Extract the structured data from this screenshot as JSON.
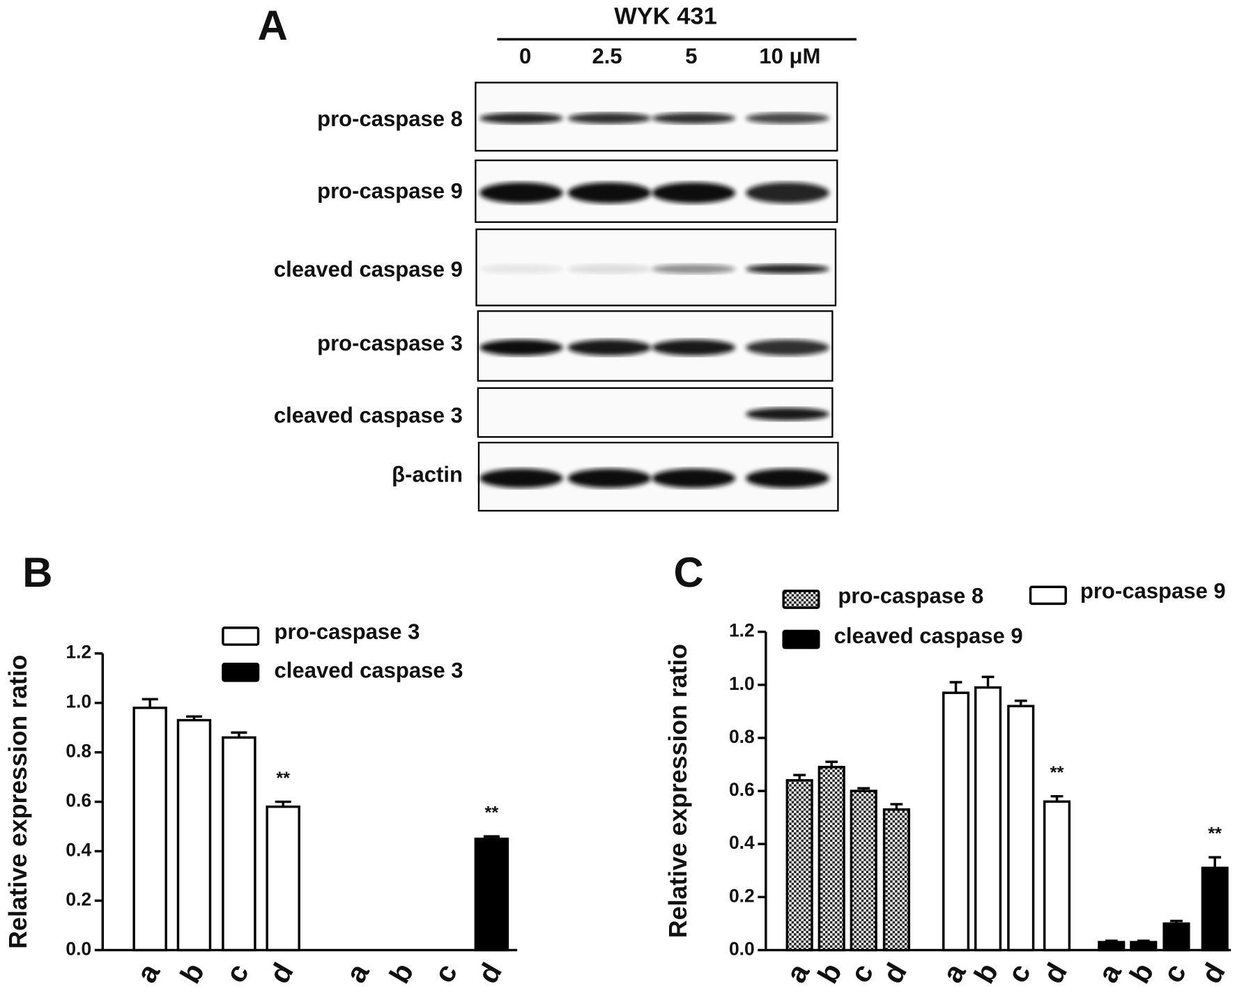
{
  "blot": {
    "panel_label": "A",
    "title": "WYK 431",
    "lanes": [
      "0",
      "2.5",
      "5",
      "10 μM"
    ],
    "rows": [
      "pro-caspase 8",
      "pro-caspase 9",
      "cleaved caspase 9",
      "pro-caspase 3",
      "cleaved caspase 3",
      "β-actin"
    ]
  },
  "chart_data": [
    {
      "type": "bar",
      "panel_label": "B",
      "y_label": "Relative expression ratio",
      "categories": [
        "a",
        "b",
        "c",
        "d",
        "a",
        "b",
        "c",
        "d"
      ],
      "ylim": [
        0,
        1.2
      ],
      "yticks": [
        {
          "value": 0,
          "label": "0.0"
        },
        {
          "value": 0.2,
          "label": "0.2"
        },
        {
          "value": 0.4,
          "label": "0.4"
        },
        {
          "value": 0.6,
          "label": "0.6"
        },
        {
          "value": 0.8,
          "label": "0.8"
        },
        {
          "value": 1,
          "label": "1.0"
        },
        {
          "value": 1.2,
          "label": "1.2"
        }
      ],
      "series": [
        {
          "name": "pro-caspase 3",
          "color": "#ffffff",
          "values": [
            0.98,
            0.93,
            0.86,
            0.58,
            null,
            null,
            null,
            null
          ],
          "errors": [
            0.035,
            0.015,
            0.02,
            0.02,
            null,
            null,
            null,
            null
          ],
          "annotations": [
            null,
            null,
            null,
            "**",
            null,
            null,
            null,
            null
          ]
        },
        {
          "name": "cleaved caspase 3",
          "color": "#000000",
          "values": [
            null,
            null,
            null,
            null,
            0,
            0,
            0,
            0.45
          ],
          "errors": [
            null,
            null,
            null,
            null,
            0,
            0,
            0,
            0.01
          ],
          "annotations": [
            null,
            null,
            null,
            null,
            null,
            null,
            null,
            "**"
          ]
        }
      ]
    },
    {
      "type": "bar",
      "panel_label": "C",
      "y_label": "Relative expression ratio",
      "categories": [
        "a",
        "b",
        "c",
        "d",
        "a",
        "b",
        "c",
        "d",
        "a",
        "b",
        "c",
        "d"
      ],
      "ylim": [
        0,
        1.2
      ],
      "yticks": [
        {
          "value": 0,
          "label": "0.0"
        },
        {
          "value": 0.2,
          "label": "0.2"
        },
        {
          "value": 0.4,
          "label": "0.4"
        },
        {
          "value": 0.6,
          "label": "0.6"
        },
        {
          "value": 0.8,
          "label": "0.8"
        },
        {
          "value": 1,
          "label": "1.0"
        },
        {
          "value": 1.2,
          "label": "1.2"
        }
      ],
      "series": [
        {
          "name": "pro-caspase 8",
          "color": "#777777",
          "pattern": "checker",
          "values": [
            0.64,
            0.69,
            0.6,
            0.53,
            null,
            null,
            null,
            null,
            null,
            null,
            null,
            null
          ],
          "errors": [
            0.02,
            0.02,
            0.01,
            0.02,
            null,
            null,
            null,
            null,
            null,
            null,
            null,
            null
          ],
          "annotations": [
            null,
            null,
            null,
            null,
            null,
            null,
            null,
            null,
            null,
            null,
            null,
            null
          ]
        },
        {
          "name": "pro-caspase 9",
          "color": "#ffffff",
          "values": [
            null,
            null,
            null,
            null,
            0.97,
            0.99,
            0.92,
            0.56,
            null,
            null,
            null,
            null
          ],
          "errors": [
            null,
            null,
            null,
            null,
            0.04,
            0.04,
            0.02,
            0.02,
            null,
            null,
            null,
            null
          ],
          "annotations": [
            null,
            null,
            null,
            null,
            null,
            null,
            null,
            "**",
            null,
            null,
            null,
            null
          ]
        },
        {
          "name": "cleaved caspase 9",
          "color": "#000000",
          "values": [
            null,
            null,
            null,
            null,
            null,
            null,
            null,
            null,
            0.03,
            0.03,
            0.1,
            0.31
          ],
          "errors": [
            null,
            null,
            null,
            null,
            null,
            null,
            null,
            null,
            0.005,
            0.005,
            0.01,
            0.04
          ],
          "annotations": [
            null,
            null,
            null,
            null,
            null,
            null,
            null,
            null,
            null,
            null,
            null,
            "**"
          ]
        }
      ]
    }
  ]
}
